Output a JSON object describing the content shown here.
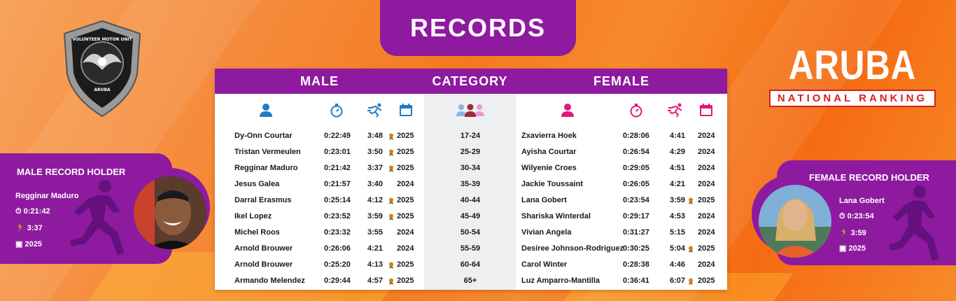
{
  "header": {
    "title": "RECORDS"
  },
  "logo": {
    "lines": [
      "VOLUNTEER MOTOR UNIT",
      "ARUBA"
    ]
  },
  "brand": {
    "title": "ARUBA",
    "subtitle": "NATIONAL RANKING"
  },
  "colors": {
    "purple": "#8e1a9f",
    "male_icon": "#1f7bc4",
    "female_icon": "#e0187a",
    "medal": "#c9861e"
  },
  "table": {
    "headers": {
      "male": "MALE",
      "category": "CATEGORY",
      "female": "FEMALE"
    },
    "icons": {
      "male": [
        "person-icon",
        "stopwatch-icon",
        "runner-icon",
        "calendar-icon"
      ],
      "category": "group-icon",
      "female": [
        "person-icon",
        "stopwatch-icon",
        "runner-icon",
        "calendar-icon"
      ]
    },
    "rows": [
      {
        "m_name": "Dy-Onn Courtar",
        "m_time": "0:22:49",
        "m_pace": "3:48",
        "m_medal": true,
        "m_year": "2025",
        "category": "17-24",
        "f_name": "Zxavierra Hoek",
        "f_time": "0:28:06",
        "f_pace": "4:41",
        "f_medal": false,
        "f_year": "2024"
      },
      {
        "m_name": "Tristan Vermeulen",
        "m_time": "0:23:01",
        "m_pace": "3:50",
        "m_medal": true,
        "m_year": "2025",
        "category": "25-29",
        "f_name": "Ayisha Courtar",
        "f_time": "0:26:54",
        "f_pace": "4:29",
        "f_medal": false,
        "f_year": "2024"
      },
      {
        "m_name": "Regginar Maduro",
        "m_time": "0:21:42",
        "m_pace": "3:37",
        "m_medal": true,
        "m_year": "2025",
        "category": "30-34",
        "f_name": "Wilyenie Croes",
        "f_time": "0:29:05",
        "f_pace": "4:51",
        "f_medal": false,
        "f_year": "2024"
      },
      {
        "m_name": "Jesus Galea",
        "m_time": "0:21:57",
        "m_pace": "3:40",
        "m_medal": false,
        "m_year": "2024",
        "category": "35-39",
        "f_name": "Jackie Toussaint",
        "f_time": "0:26:05",
        "f_pace": "4:21",
        "f_medal": false,
        "f_year": "2024"
      },
      {
        "m_name": "Darral Erasmus",
        "m_time": "0:25:14",
        "m_pace": "4:12",
        "m_medal": true,
        "m_year": "2025",
        "category": "40-44",
        "f_name": "Lana Gobert",
        "f_time": "0:23:54",
        "f_pace": "3:59",
        "f_medal": true,
        "f_year": "2025"
      },
      {
        "m_name": "Ikel Lopez",
        "m_time": "0:23:52",
        "m_pace": "3:59",
        "m_medal": true,
        "m_year": "2025",
        "category": "45-49",
        "f_name": "Shariska Winterdal",
        "f_time": "0:29:17",
        "f_pace": "4:53",
        "f_medal": false,
        "f_year": "2024"
      },
      {
        "m_name": "Michel Roos",
        "m_time": "0:23:32",
        "m_pace": "3:55",
        "m_medal": false,
        "m_year": "2024",
        "category": "50-54",
        "f_name": "Vivian Angela",
        "f_time": "0:31:27",
        "f_pace": "5:15",
        "f_medal": false,
        "f_year": "2024"
      },
      {
        "m_name": "Arnold Brouwer",
        "m_time": "0:26:06",
        "m_pace": "4:21",
        "m_medal": false,
        "m_year": "2024",
        "category": "55-59",
        "f_name": "Desiree Johnson-Rodriguez",
        "f_time": "0:30:25",
        "f_pace": "5:04",
        "f_medal": true,
        "f_year": "2025"
      },
      {
        "m_name": "Arnold Brouwer",
        "m_time": "0:25:20",
        "m_pace": "4:13",
        "m_medal": true,
        "m_year": "2025",
        "category": "60-64",
        "f_name": "Carol Winter",
        "f_time": "0:28:38",
        "f_pace": "4:46",
        "f_medal": false,
        "f_year": "2024"
      },
      {
        "m_name": "Armando Melendez",
        "m_time": "0:29:44",
        "m_pace": "4:57",
        "m_medal": true,
        "m_year": "2025",
        "category": "65+",
        "f_name": "Luz Amparro-Mantilla",
        "f_time": "0:36:41",
        "f_pace": "6:07",
        "f_medal": true,
        "f_year": "2025"
      }
    ]
  },
  "male_holder": {
    "title": "MALE RECORD HOLDER",
    "name": "Regginar Maduro",
    "time": "0:21:42",
    "pace": "3:37",
    "year": "2025"
  },
  "female_holder": {
    "title": "FEMALE RECORD HOLDER",
    "name": "Lana Gobert",
    "time": "0:23:54",
    "pace": "3:59",
    "year": "2025"
  }
}
